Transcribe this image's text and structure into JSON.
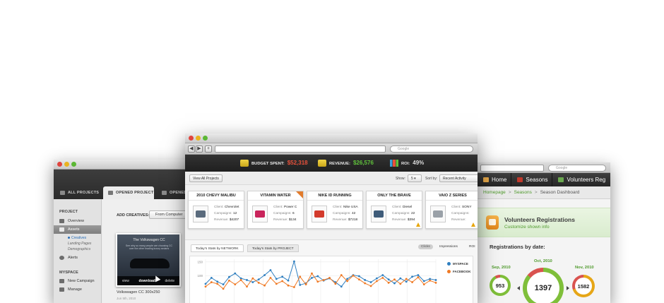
{
  "left_window": {
    "tabs": [
      {
        "label": "ALL PROJECTS",
        "active": false
      },
      {
        "label": "OPENED PROJECT",
        "active": true
      },
      {
        "label": "OPENED",
        "active": false
      }
    ],
    "sidebar": {
      "project_title": "PROJECT",
      "project_items": [
        {
          "label": "Overview",
          "active": false
        },
        {
          "label": "Assets",
          "active": true
        }
      ],
      "subitems": [
        {
          "label": "Creatives",
          "active": true
        },
        {
          "label": "Landing Pages",
          "active": false
        },
        {
          "label": "Demographics",
          "active": false
        }
      ],
      "alerts_label": "Alerts",
      "myspace_title": "MYSPACE",
      "myspace_items": [
        "New Campaign",
        "Manage"
      ]
    },
    "main": {
      "add_creatives_label": "ADD CREATIVES:",
      "from_computer_label": "From Computer",
      "thumb": {
        "ad_title": "The Volkswagen CC",
        "ad_subtitle": "See why so many people are choosing CC over the other leading luxury sedans",
        "actions": [
          "view",
          "download",
          "delete"
        ],
        "caption": "Volkswagen CC 300x250",
        "date": "Jun 5th, 2010"
      }
    }
  },
  "center_window": {
    "search_placeholder": "Google",
    "kpis": [
      {
        "label": "BUDGET SPENT:",
        "value": "$52,318",
        "color": "#e8503a"
      },
      {
        "label": "REVENUE:",
        "value": "$26,576",
        "color": "#5fc13a"
      },
      {
        "label": "ROI:",
        "value": "49%",
        "color": "#dddddd"
      }
    ],
    "controls": {
      "view_all_label": "View All Projects",
      "show_label": "Show:",
      "show_value": "5",
      "sort_label": "Sort by:",
      "sort_value": "Recent Activity"
    },
    "projects": [
      {
        "title": "2010 CHEVY MALIBU",
        "client": "Chevrolet",
        "campaigns": "12",
        "revenue": "$4207",
        "thumb_color": "#5a6b7d",
        "flag": false,
        "warn": false
      },
      {
        "title": "VITAMIN WATER",
        "client": "Power C",
        "campaigns": "6",
        "revenue": "$134",
        "thumb_color": "#c9245b",
        "flag": true,
        "warn": false
      },
      {
        "title": "NIKE ID RUNNING",
        "client": "Nike USA",
        "campaigns": "42",
        "revenue": "$7218",
        "thumb_color": "#d33a2c",
        "flag": false,
        "warn": false
      },
      {
        "title": "ONLY THE BRAVE",
        "client": "Diesel",
        "campaigns": "22",
        "revenue": "$394",
        "thumb_color": "#3f5c7a",
        "flag": false,
        "warn": true
      },
      {
        "title": "VAIO Z SERIES",
        "client": "SONY",
        "campaigns": "",
        "revenue": "",
        "thumb_color": "#9aa1a8",
        "flag": false,
        "warn": true
      }
    ],
    "field_labels": {
      "client": "Client:",
      "campaigns": "Campaigns:",
      "revenue": "Revenue:"
    },
    "stats": {
      "tabs": [
        {
          "label": "Today's Stats by NETWORK",
          "active": true
        },
        {
          "label": "Today's Stats by PROJECT",
          "active": false
        }
      ],
      "metrics": [
        {
          "label": "Clicks",
          "active": true
        },
        {
          "label": "Impressions",
          "active": false
        },
        {
          "label": "ROI",
          "active": false
        }
      ]
    }
  },
  "chart_data": {
    "type": "line",
    "title": "",
    "xlabel": "",
    "ylabel": "",
    "ylim": [
      0,
      160
    ],
    "y_ticks": [
      100,
      150
    ],
    "x": [
      1,
      2,
      3,
      4,
      5,
      6,
      7,
      8,
      9,
      10,
      11,
      12,
      13,
      14,
      15,
      16,
      17,
      18,
      19,
      20,
      21,
      22,
      23,
      24,
      25,
      26,
      27,
      28,
      29,
      30,
      31,
      32,
      33,
      34,
      35,
      36,
      37,
      38,
      39,
      40
    ],
    "legend_position": "right",
    "series": [
      {
        "name": "MYSPACE",
        "color": "#2f7fc0",
        "values": [
          70,
          92,
          78,
          68,
          95,
          108,
          90,
          84,
          76,
          86,
          102,
          120,
          88,
          96,
          82,
          152,
          66,
          72,
          92,
          98,
          82,
          90,
          76,
          60,
          88,
          102,
          98,
          84,
          76,
          90,
          102,
          86,
          72,
          90,
          78,
          96,
          102,
          80,
          88,
          84
        ]
      },
      {
        "name": "FACEBOOK",
        "color": "#f07a25",
        "values": [
          60,
          76,
          70,
          52,
          82,
          68,
          84,
          60,
          90,
          74,
          64,
          92,
          70,
          80,
          64,
          58,
          96,
          68,
          108,
          78,
          84,
          92,
          70,
          102,
          80,
          100,
          86,
          72,
          62,
          80,
          92,
          74,
          86,
          70,
          88,
          76,
          94,
          68,
          82,
          74
        ]
      }
    ]
  },
  "right_window": {
    "nav": [
      {
        "label": "Home",
        "icon": "home-icon",
        "color": "#e8a94a"
      },
      {
        "label": "Seasons",
        "icon": "calendar-icon",
        "color": "#c0392b"
      },
      {
        "label": "Volunteers Reg",
        "icon": "users-icon",
        "color": "#6aa84f"
      }
    ],
    "breadcrumb": [
      "Homepage",
      "Seasons",
      "Season Dashboard"
    ],
    "banner": {
      "title": "Volunteers Registrations",
      "link": "Customize shown info"
    },
    "registrations_title": "Registrations by date:",
    "dates": [
      {
        "label": "Sep, 2010",
        "value": "953",
        "progress": 0.92
      },
      {
        "label": "Oct, 2010",
        "value": "1397",
        "progress": 0.86
      },
      {
        "label": "Nov, 2010",
        "value": "1582",
        "progress": 0.7
      }
    ]
  }
}
